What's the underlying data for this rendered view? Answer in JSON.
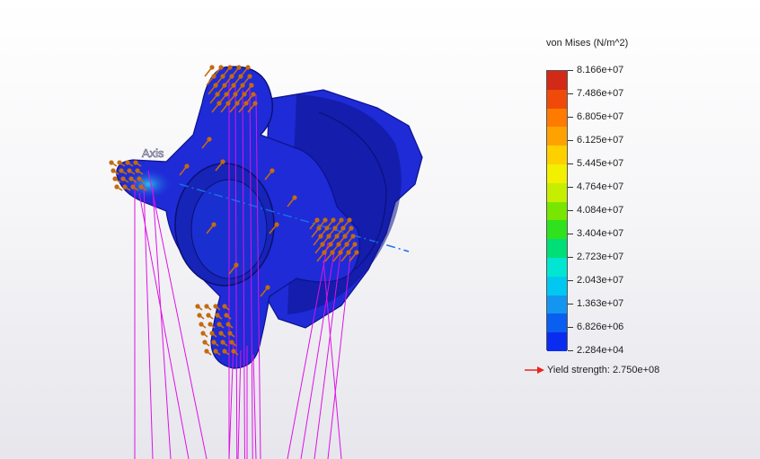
{
  "viewport": {
    "axis_label": "Axis"
  },
  "legend": {
    "title": "von Mises (N/m^2)",
    "ticks": [
      "8.166e+07",
      "7.486e+07",
      "6.805e+07",
      "6.125e+07",
      "5.445e+07",
      "4.764e+07",
      "4.084e+07",
      "3.404e+07",
      "2.723e+07",
      "2.043e+07",
      "1.363e+07",
      "6.826e+06",
      "2.284e+04"
    ],
    "colors": [
      "#d22a16",
      "#ef4a0a",
      "#ff7a00",
      "#ffa200",
      "#ffd000",
      "#f2ef00",
      "#c6ee00",
      "#78e600",
      "#2fe21d",
      "#00de78",
      "#00e6d2",
      "#00c8f0",
      "#1496f0",
      "#0a5ef0",
      "#0a2cf0"
    ],
    "yield_label": "Yield strength: 2.750e+08",
    "yield_arrow_color": "#e8261a"
  },
  "model": {
    "body_color": "#1e2bd6",
    "dark_color": "#0d138a",
    "load_arrow_color": "#c46a10",
    "fixture_color": "#e010e6"
  }
}
